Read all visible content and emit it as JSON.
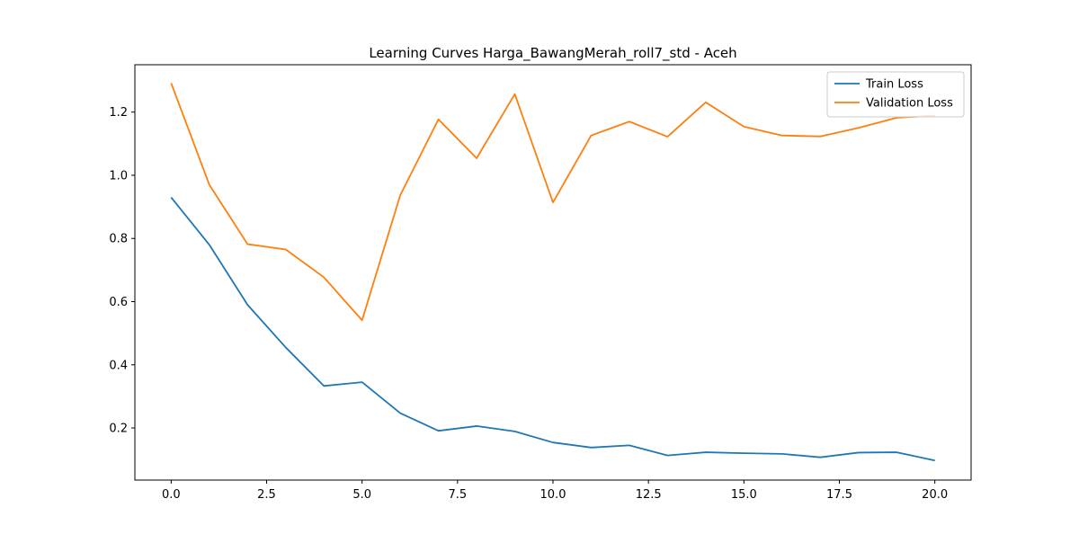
{
  "chart_data": {
    "type": "line",
    "title": "Learning Curves Harga_BawangMerah_roll7_std - Aceh",
    "xlabel": "",
    "ylabel": "",
    "xlim": [
      -0.95,
      20.95
    ],
    "ylim": [
      0.035,
      1.35
    ],
    "x_ticks": [
      0.0,
      2.5,
      5.0,
      7.5,
      10.0,
      12.5,
      15.0,
      17.5,
      20.0
    ],
    "x_tick_labels": [
      "0.0",
      "2.5",
      "5.0",
      "7.5",
      "10.0",
      "12.5",
      "15.0",
      "17.5",
      "20.0"
    ],
    "y_ticks": [
      0.2,
      0.4,
      0.6,
      0.8,
      1.0,
      1.2
    ],
    "y_tick_labels": [
      "0.2",
      "0.4",
      "0.6",
      "0.8",
      "1.0",
      "1.2"
    ],
    "grid": false,
    "legend_position": "top-right",
    "x": [
      0,
      1,
      2,
      3,
      4,
      5,
      6,
      7,
      8,
      9,
      10,
      11,
      12,
      13,
      14,
      15,
      16,
      17,
      18,
      19,
      20
    ],
    "series": [
      {
        "name": "Train Loss",
        "color": "#1f77b4",
        "values": [
          0.93,
          0.78,
          0.59,
          0.455,
          0.333,
          0.345,
          0.247,
          0.191,
          0.206,
          0.189,
          0.154,
          0.138,
          0.145,
          0.113,
          0.123,
          0.12,
          0.118,
          0.107,
          0.122,
          0.123,
          0.097
        ]
      },
      {
        "name": "Validation Loss",
        "color": "#ff7f0e",
        "values": [
          1.292,
          0.97,
          0.782,
          0.765,
          0.677,
          0.541,
          0.937,
          1.177,
          1.054,
          1.257,
          0.914,
          1.126,
          1.17,
          1.122,
          1.231,
          1.154,
          1.126,
          1.123,
          1.15,
          1.182,
          1.189
        ]
      }
    ]
  }
}
